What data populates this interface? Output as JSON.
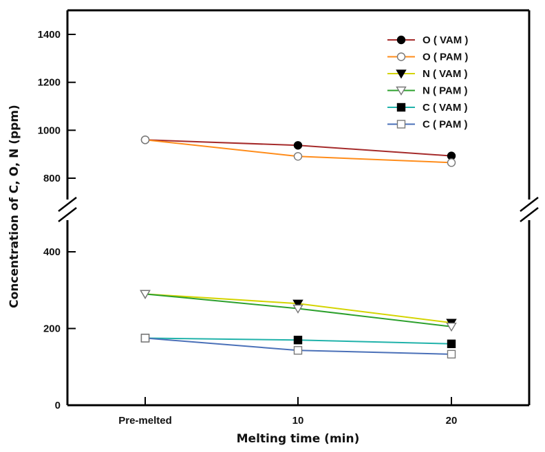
{
  "chart_data": {
    "type": "line",
    "title": "",
    "xlabel": "Melting time (min)",
    "ylabel": "Concentration of C, O, N (ppm)",
    "categories": [
      "Pre-melted",
      "10",
      "20"
    ],
    "y_axis_break": true,
    "ylim_lower": [
      0,
      480
    ],
    "ylim_upper": [
      700,
      1500
    ],
    "yticks_lower": [
      "0",
      "200",
      "400"
    ],
    "yticks_upper": [
      "800",
      "1000",
      "1200",
      "1400"
    ],
    "grid": false,
    "legend_position": "top-right",
    "series": [
      {
        "name": "O ( VAM )",
        "color": "#a52a2a",
        "marker": "filled-circle",
        "values": [
          960,
          937,
          893
        ]
      },
      {
        "name": "O ( PAM )",
        "color": "#ff8c1a",
        "marker": "open-circle",
        "values": [
          960,
          891,
          865
        ]
      },
      {
        "name": "N ( VAM )",
        "color": "#d4d400",
        "marker": "filled-triangle-down",
        "values": [
          290,
          265,
          215
        ]
      },
      {
        "name": "N ( PAM )",
        "color": "#2ca02c",
        "marker": "open-triangle-down",
        "values": [
          290,
          252,
          205
        ]
      },
      {
        "name": "C ( VAM )",
        "color": "#20b2aa",
        "marker": "filled-square",
        "values": [
          175,
          170,
          160
        ]
      },
      {
        "name": "C ( PAM )",
        "color": "#4a70b8",
        "marker": "open-square",
        "values": [
          175,
          143,
          133
        ]
      }
    ]
  }
}
